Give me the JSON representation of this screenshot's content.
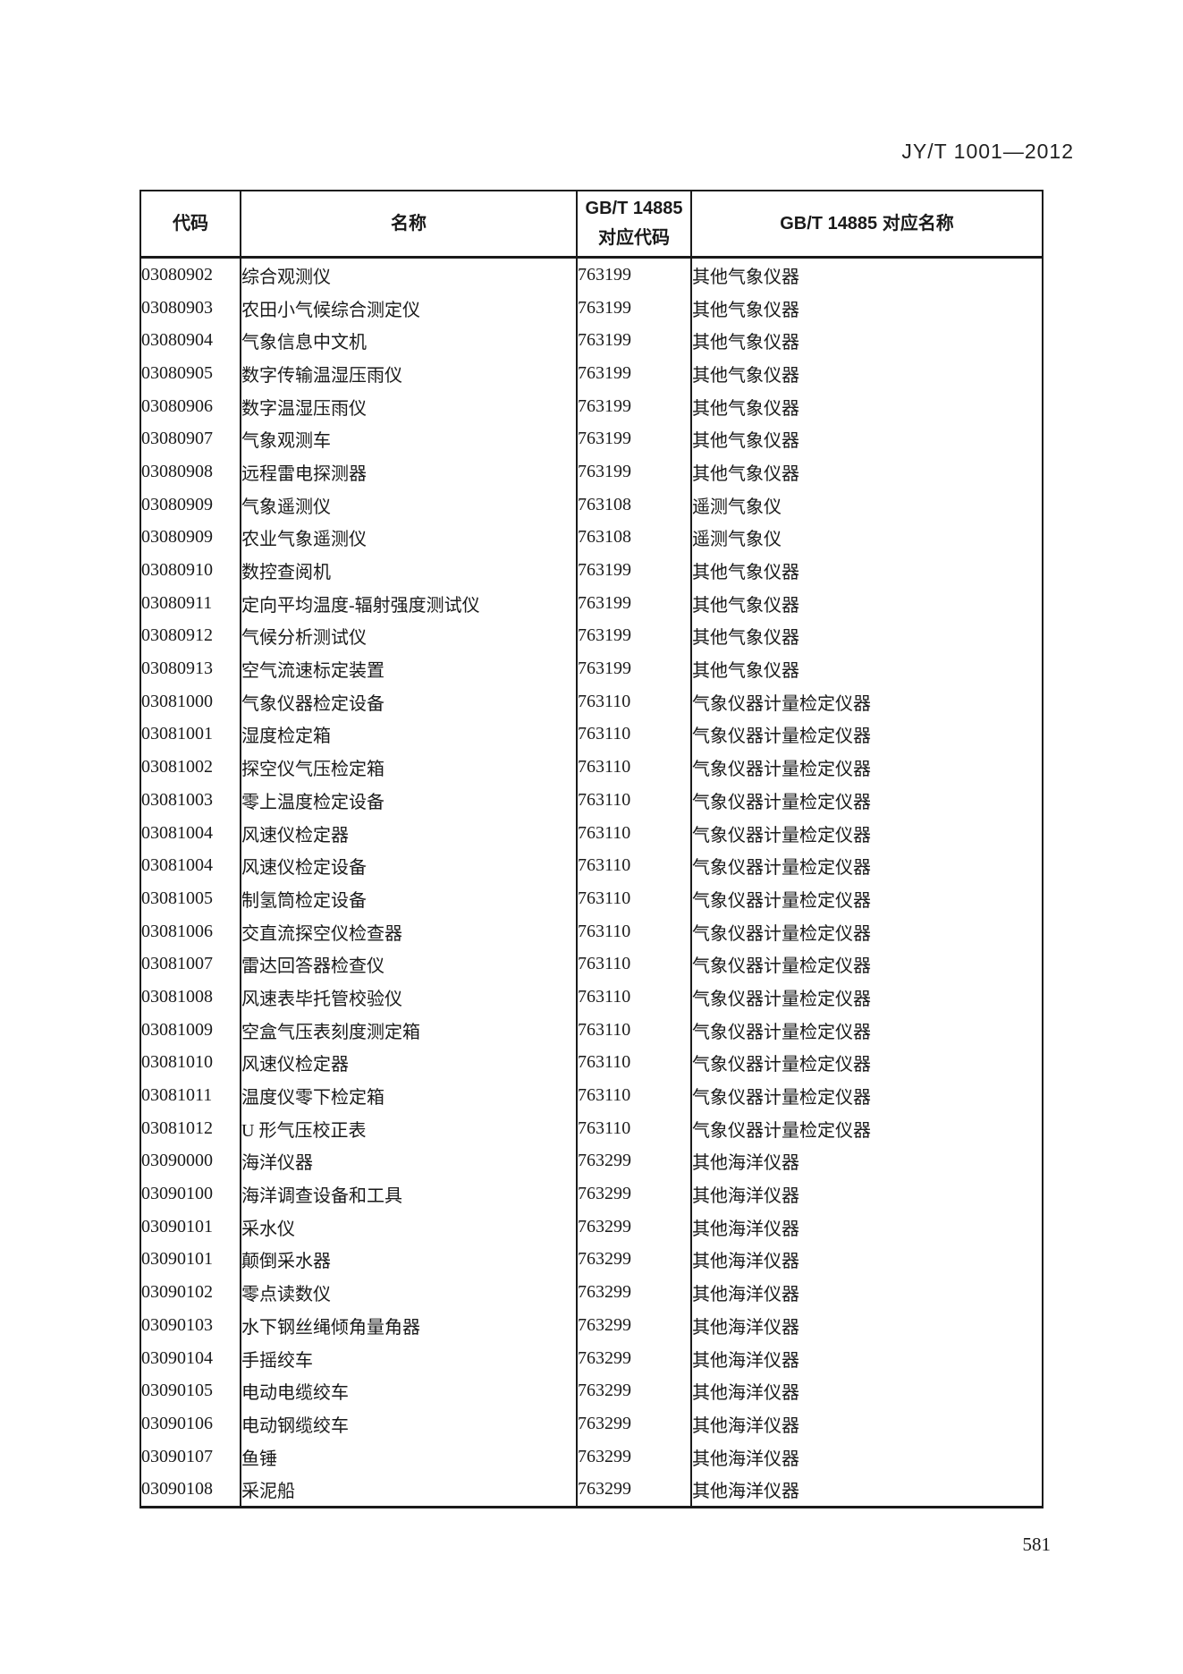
{
  "page": {
    "doc_number": "JY/T 1001—2012",
    "page_number": "581"
  },
  "table": {
    "headers": {
      "code": "代码",
      "name": "名称",
      "gbt_code_line1": "GB/T 14885",
      "gbt_code_line2": "对应代码",
      "gbt_name": "GB/T 14885 对应名称"
    },
    "rows": [
      {
        "code": "03080902",
        "name": "综合观测仪",
        "gbt_code": "763199",
        "gbt_name": "其他气象仪器"
      },
      {
        "code": "03080903",
        "name": "农田小气候综合测定仪",
        "gbt_code": "763199",
        "gbt_name": "其他气象仪器"
      },
      {
        "code": "03080904",
        "name": "气象信息中文机",
        "gbt_code": "763199",
        "gbt_name": "其他气象仪器"
      },
      {
        "code": "03080905",
        "name": "数字传输温湿压雨仪",
        "gbt_code": "763199",
        "gbt_name": "其他气象仪器"
      },
      {
        "code": "03080906",
        "name": "数字温湿压雨仪",
        "gbt_code": "763199",
        "gbt_name": "其他气象仪器"
      },
      {
        "code": "03080907",
        "name": "气象观测车",
        "gbt_code": "763199",
        "gbt_name": "其他气象仪器"
      },
      {
        "code": "03080908",
        "name": "远程雷电探测器",
        "gbt_code": "763199",
        "gbt_name": "其他气象仪器"
      },
      {
        "code": "03080909",
        "name": "气象遥测仪",
        "gbt_code": "763108",
        "gbt_name": "遥测气象仪"
      },
      {
        "code": "03080909",
        "name": "农业气象遥测仪",
        "gbt_code": "763108",
        "gbt_name": "遥测气象仪"
      },
      {
        "code": "03080910",
        "name": "数控查阅机",
        "gbt_code": "763199",
        "gbt_name": "其他气象仪器"
      },
      {
        "code": "03080911",
        "name": "定向平均温度-辐射强度测试仪",
        "gbt_code": "763199",
        "gbt_name": "其他气象仪器"
      },
      {
        "code": "03080912",
        "name": "气候分析测试仪",
        "gbt_code": "763199",
        "gbt_name": "其他气象仪器"
      },
      {
        "code": "03080913",
        "name": "空气流速标定装置",
        "gbt_code": "763199",
        "gbt_name": "其他气象仪器"
      },
      {
        "code": "03081000",
        "name": "气象仪器检定设备",
        "gbt_code": "763110",
        "gbt_name": "气象仪器计量检定仪器"
      },
      {
        "code": "03081001",
        "name": "湿度检定箱",
        "gbt_code": "763110",
        "gbt_name": "气象仪器计量检定仪器"
      },
      {
        "code": "03081002",
        "name": "探空仪气压检定箱",
        "gbt_code": "763110",
        "gbt_name": "气象仪器计量检定仪器"
      },
      {
        "code": "03081003",
        "name": "零上温度检定设备",
        "gbt_code": "763110",
        "gbt_name": "气象仪器计量检定仪器"
      },
      {
        "code": "03081004",
        "name": "风速仪检定器",
        "gbt_code": "763110",
        "gbt_name": "气象仪器计量检定仪器"
      },
      {
        "code": "03081004",
        "name": "风速仪检定设备",
        "gbt_code": "763110",
        "gbt_name": "气象仪器计量检定仪器"
      },
      {
        "code": "03081005",
        "name": "制氢筒检定设备",
        "gbt_code": "763110",
        "gbt_name": "气象仪器计量检定仪器"
      },
      {
        "code": "03081006",
        "name": "交直流探空仪检查器",
        "gbt_code": "763110",
        "gbt_name": "气象仪器计量检定仪器"
      },
      {
        "code": "03081007",
        "name": "雷达回答器检查仪",
        "gbt_code": "763110",
        "gbt_name": "气象仪器计量检定仪器"
      },
      {
        "code": "03081008",
        "name": "风速表毕托管校验仪",
        "gbt_code": "763110",
        "gbt_name": "气象仪器计量检定仪器"
      },
      {
        "code": "03081009",
        "name": "空盒气压表刻度测定箱",
        "gbt_code": "763110",
        "gbt_name": "气象仪器计量检定仪器"
      },
      {
        "code": "03081010",
        "name": "风速仪检定器",
        "gbt_code": "763110",
        "gbt_name": "气象仪器计量检定仪器"
      },
      {
        "code": "03081011",
        "name": "温度仪零下检定箱",
        "gbt_code": "763110",
        "gbt_name": "气象仪器计量检定仪器"
      },
      {
        "code": "03081012",
        "name": "U 形气压校正表",
        "gbt_code": "763110",
        "gbt_name": "气象仪器计量检定仪器"
      },
      {
        "code": "03090000",
        "name": "海洋仪器",
        "gbt_code": "763299",
        "gbt_name": "其他海洋仪器"
      },
      {
        "code": "03090100",
        "name": "海洋调查设备和工具",
        "gbt_code": "763299",
        "gbt_name": "其他海洋仪器"
      },
      {
        "code": "03090101",
        "name": "采水仪",
        "gbt_code": "763299",
        "gbt_name": "其他海洋仪器"
      },
      {
        "code": "03090101",
        "name": "颠倒采水器",
        "gbt_code": "763299",
        "gbt_name": "其他海洋仪器"
      },
      {
        "code": "03090102",
        "name": "零点读数仪",
        "gbt_code": "763299",
        "gbt_name": "其他海洋仪器"
      },
      {
        "code": "03090103",
        "name": "水下钢丝绳倾角量角器",
        "gbt_code": "763299",
        "gbt_name": "其他海洋仪器"
      },
      {
        "code": "03090104",
        "name": "手摇绞车",
        "gbt_code": "763299",
        "gbt_name": "其他海洋仪器"
      },
      {
        "code": "03090105",
        "name": "电动电缆绞车",
        "gbt_code": "763299",
        "gbt_name": "其他海洋仪器"
      },
      {
        "code": "03090106",
        "name": "电动钢缆绞车",
        "gbt_code": "763299",
        "gbt_name": "其他海洋仪器"
      },
      {
        "code": "03090107",
        "name": "鱼锤",
        "gbt_code": "763299",
        "gbt_name": "其他海洋仪器"
      },
      {
        "code": "03090108",
        "name": "采泥船",
        "gbt_code": "763299",
        "gbt_name": "其他海洋仪器"
      }
    ]
  }
}
